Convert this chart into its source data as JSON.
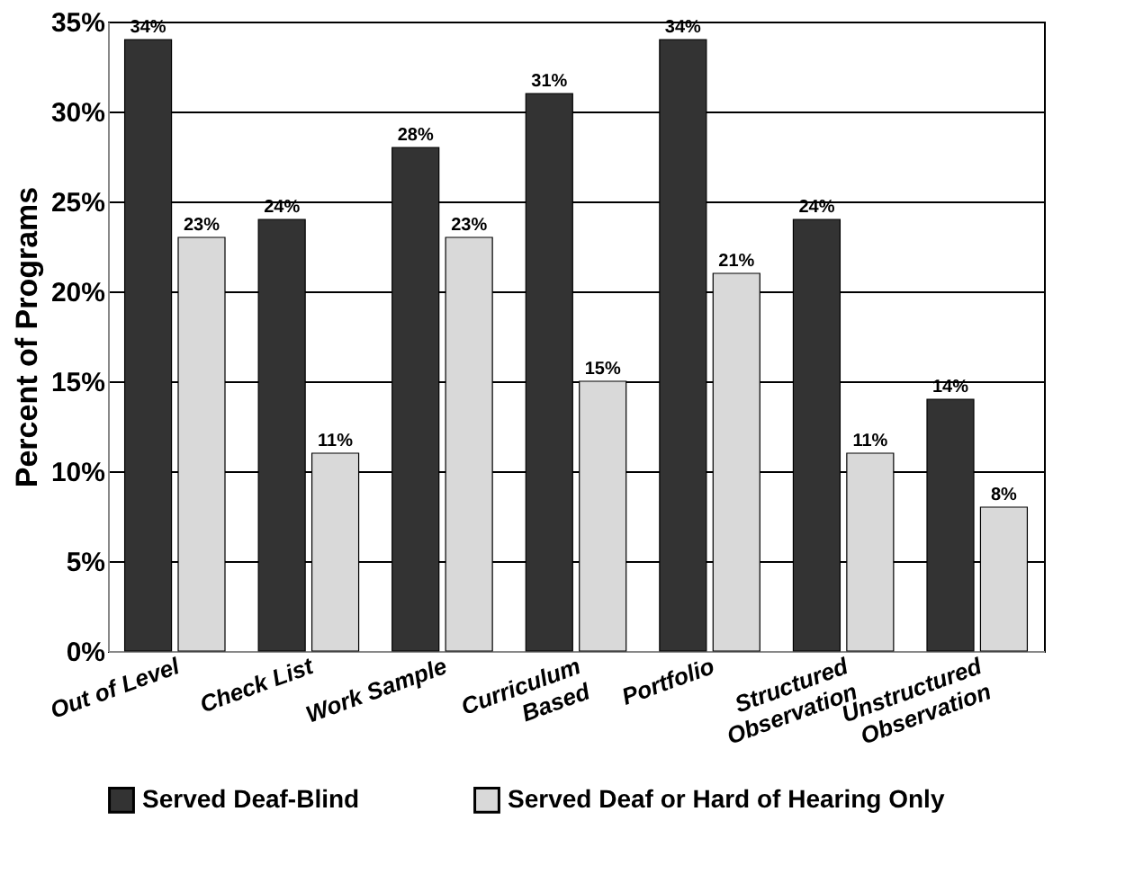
{
  "chart_data": {
    "type": "bar",
    "ylabel": "Percent of Programs",
    "categories": [
      "Out of Level",
      "Check List",
      "Work Sample",
      "Curriculum\nBased",
      "Portfolio",
      "Structured\nObservation",
      "Unstructured\nObservation"
    ],
    "series": [
      {
        "name": "Served Deaf-Blind",
        "color": "#333333",
        "values": [
          34,
          24,
          28,
          31,
          34,
          24,
          14
        ],
        "value_labels": [
          "34%",
          "24%",
          "28%",
          "31%",
          "34%",
          "24%",
          "14%"
        ]
      },
      {
        "name": "Served Deaf or Hard of Hearing Only",
        "color": "#d9d9d9",
        "values": [
          23,
          11,
          23,
          15,
          21,
          11,
          8
        ],
        "value_labels": [
          "23%",
          "11%",
          "23%",
          "15%",
          "21%",
          "11%",
          "8%"
        ]
      }
    ],
    "ylim": [
      0,
      35
    ],
    "yticks": [
      {
        "value": 0,
        "label": "0%"
      },
      {
        "value": 5,
        "label": "5%"
      },
      {
        "value": 10,
        "label": "10%"
      },
      {
        "value": 15,
        "label": "15%"
      },
      {
        "value": 20,
        "label": "20%"
      },
      {
        "value": 25,
        "label": "25%"
      },
      {
        "value": 30,
        "label": "30%"
      },
      {
        "value": 35,
        "label": "35%"
      }
    ],
    "grid": "y",
    "legend": "bottom"
  }
}
